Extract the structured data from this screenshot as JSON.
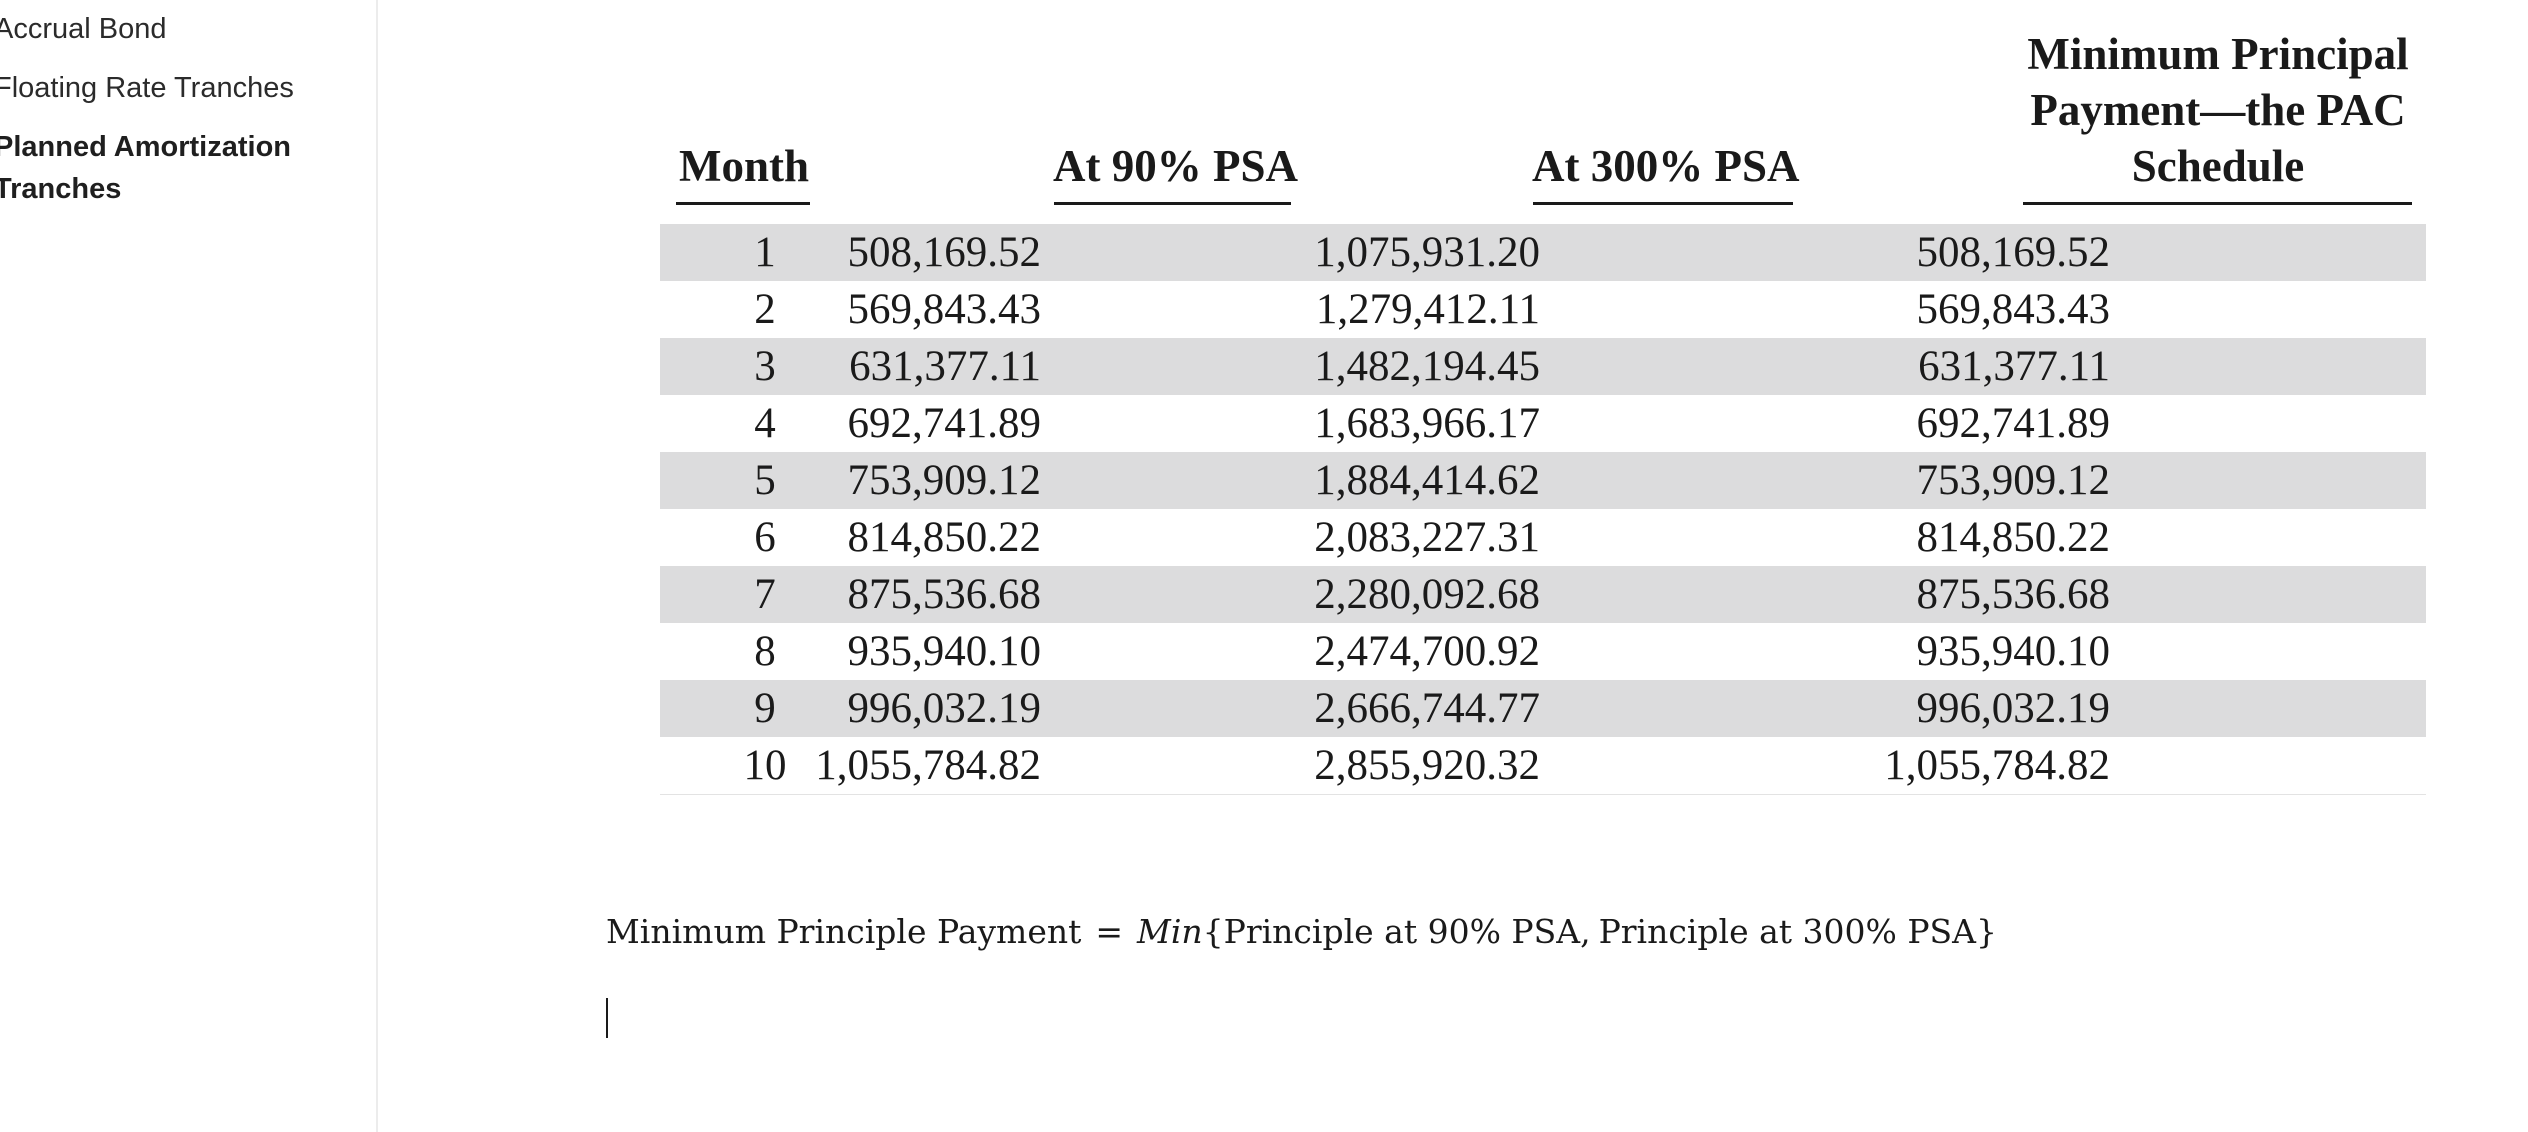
{
  "sidebar": {
    "items": [
      {
        "label": "Accrual Bond",
        "active": false
      },
      {
        "label": "Floating Rate Tranches",
        "active": false
      },
      {
        "label": "Planned Amortization Tranches",
        "active": true
      }
    ]
  },
  "table": {
    "headers": {
      "month": "Month",
      "psa90": "At 90% PSA",
      "psa300": "At 300% PSA",
      "pac_line1": "Minimum Principal",
      "pac_line2": "Payment—the PAC",
      "pac_line3": "Schedule"
    },
    "rows": [
      {
        "month": "1",
        "psa90": "508,169.52",
        "psa300": "1,075,931.20",
        "pac": "508,169.52"
      },
      {
        "month": "2",
        "psa90": "569,843.43",
        "psa300": "1,279,412.11",
        "pac": "569,843.43"
      },
      {
        "month": "3",
        "psa90": "631,377.11",
        "psa300": "1,482,194.45",
        "pac": "631,377.11"
      },
      {
        "month": "4",
        "psa90": "692,741.89",
        "psa300": "1,683,966.17",
        "pac": "692,741.89"
      },
      {
        "month": "5",
        "psa90": "753,909.12",
        "psa300": "1,884,414.62",
        "pac": "753,909.12"
      },
      {
        "month": "6",
        "psa90": "814,850.22",
        "psa300": "2,083,227.31",
        "pac": "814,850.22"
      },
      {
        "month": "7",
        "psa90": "875,536.68",
        "psa300": "2,280,092.68",
        "pac": "875,536.68"
      },
      {
        "month": "8",
        "psa90": "935,940.10",
        "psa300": "2,474,700.92",
        "pac": "935,940.10"
      },
      {
        "month": "9",
        "psa90": "996,032.19",
        "psa300": "2,666,744.77",
        "pac": "996,032.19"
      },
      {
        "month": "10",
        "psa90": "1,055,784.82",
        "psa300": "2,855,920.32",
        "pac": "1,055,784.82"
      }
    ]
  },
  "formula": {
    "lhs": "Minimum Principle Payment",
    "equals": "=",
    "func": "Min",
    "open": "{",
    "arg1": "Principle at 90% PSA",
    "comma": ",",
    "arg2": "Principle at 300% PSA",
    "close": "}"
  },
  "colors": {
    "row_shade": "#dcdcdd",
    "text": "#1a1a1a",
    "sidebar_border": "#ececec"
  }
}
